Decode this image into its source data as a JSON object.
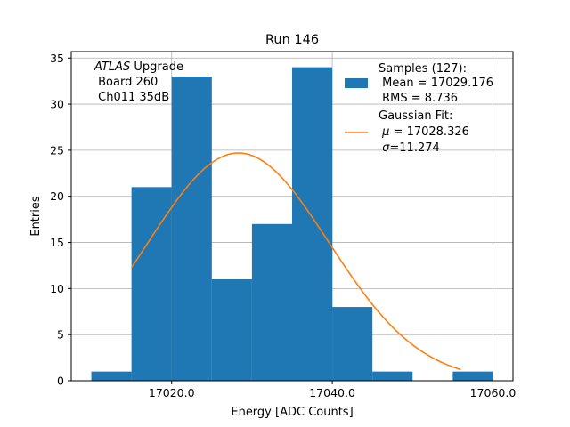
{
  "chart_data": {
    "type": "bar",
    "title": "Run 146",
    "xlabel": "Energy [ADC Counts]",
    "ylabel": "Entries",
    "xlim": [
      17007.5,
      17062.5
    ],
    "ylim": [
      0,
      35.7
    ],
    "grid": true,
    "legend_position": "top-right",
    "bar_color": "#1f77b4",
    "fit_color": "#ff7f0e",
    "x_ticks": [
      17020.0,
      17040.0,
      17060.0
    ],
    "x_tick_labels": [
      "17020.0",
      "17040.0",
      "17060.0"
    ],
    "y_ticks": [
      0,
      5,
      10,
      15,
      20,
      25,
      30,
      35
    ],
    "y_tick_labels": [
      "0",
      "5",
      "10",
      "15",
      "20",
      "25",
      "30",
      "35"
    ],
    "histogram": {
      "bin_edges": [
        17010,
        17015,
        17020,
        17025,
        17030,
        17035,
        17040,
        17045,
        17050,
        17055,
        17060
      ],
      "counts": [
        1,
        21,
        33,
        11,
        17,
        34,
        8,
        1,
        0,
        1
      ]
    },
    "fit": {
      "mu": 17028.326,
      "sigma": 11.274,
      "amplitude": 24.7,
      "x_range": [
        17015,
        17056
      ]
    },
    "annotation": {
      "experiment": "ATLAS",
      "experiment_suffix": " Upgrade",
      "board": " Board 260",
      "channel": " Ch011 35dB"
    },
    "legend": {
      "samples_title": "Samples (127):",
      "samples_mean": " Mean = 17029.176",
      "samples_rms": " RMS = 8.736",
      "fit_title": "Gaussian Fit:",
      "fit_mu_symbol": "μ",
      "fit_mu_value": " = 17028.326",
      "fit_sigma_symbol": "σ",
      "fit_sigma_value": "=11.274"
    }
  }
}
